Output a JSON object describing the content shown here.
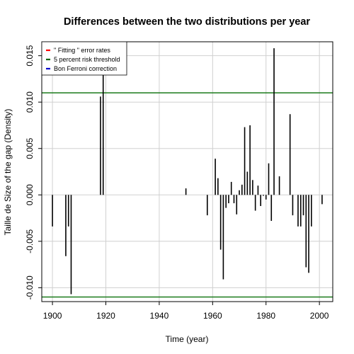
{
  "chart_data": {
    "type": "bar",
    "title": "Differences between the two distributions per year",
    "xlabel": "Time (year)",
    "ylabel": "Taille de Size of the gap (Density)",
    "xlim": [
      1896,
      2005
    ],
    "ylim": [
      -0.0115,
      0.0165
    ],
    "grid": true,
    "x_ticks": [
      1900,
      1920,
      1940,
      1960,
      1980,
      2000
    ],
    "y_ticks": [
      -0.01,
      -0.005,
      0.0,
      0.005,
      0.01,
      0.015
    ],
    "x_tick_labels": [
      "1900",
      "1920",
      "1940",
      "1960",
      "1980",
      "2000"
    ],
    "y_tick_labels": [
      "-0.010",
      "-0.005",
      "0.000",
      "0.005",
      "0.010",
      "0.015"
    ],
    "legend": {
      "placement": "top-left",
      "entries": [
        {
          "label": "\" Fitting \" error rates",
          "color": "#ff0000"
        },
        {
          "label": "5 percent risk threshold",
          "color": "#006400"
        },
        {
          "label": "Bon Ferroni correction",
          "color": "#0000cd"
        }
      ]
    },
    "thresholds": [
      {
        "name": "5 percent risk threshold",
        "value": 0.011,
        "color": "#1a7a1a"
      },
      {
        "name": "5 percent risk threshold",
        "value": -0.011,
        "color": "#1a7a1a"
      }
    ],
    "bar_color": "#000000",
    "series": [
      {
        "x": [
          1900,
          1905,
          1906,
          1907,
          1918,
          1919,
          1950,
          1958,
          1961,
          1962,
          1963,
          1964,
          1965,
          1966,
          1967,
          1968,
          1969,
          1970,
          1971,
          1972,
          1973,
          1974,
          1975,
          1976,
          1977,
          1978,
          1979,
          1980,
          1981,
          1982,
          1983,
          1985,
          1989,
          1990,
          1992,
          1993,
          1994,
          1995,
          1996,
          1997,
          2001
        ],
        "values": [
          -0.0034,
          -0.0066,
          -0.0034,
          -0.0107,
          0.0106,
          0.0131,
          0.0007,
          -0.0022,
          0.0039,
          0.0018,
          -0.0059,
          -0.0091,
          -0.0014,
          -0.0009,
          0.0014,
          -0.0009,
          -0.0021,
          0.0005,
          0.0011,
          0.0073,
          0.0025,
          0.0075,
          0.0016,
          -0.0017,
          0.001,
          -0.0012,
          -0.0001,
          -0.0005,
          0.0034,
          -0.0028,
          0.0158,
          0.002,
          0.0087,
          -0.0022,
          -0.0034,
          -0.0034,
          -0.0022,
          -0.0078,
          -0.0084,
          -0.0034,
          -0.001
        ]
      }
    ]
  }
}
